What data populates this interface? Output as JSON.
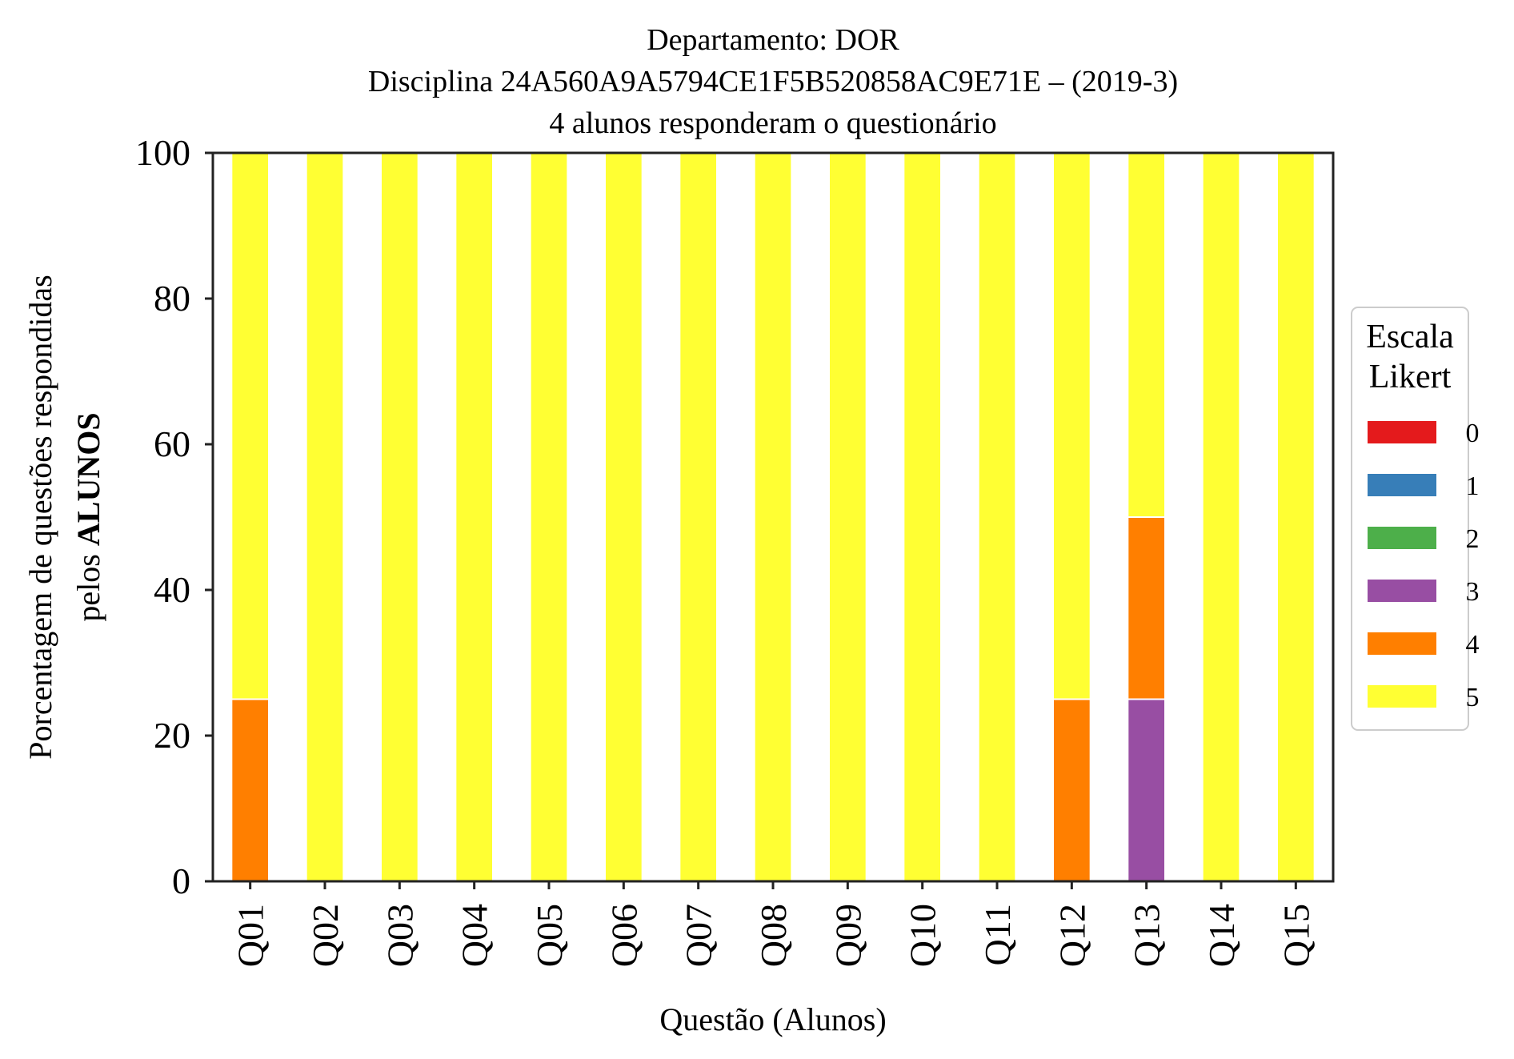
{
  "chart_data": {
    "type": "bar",
    "stacked": true,
    "title_lines": [
      "Departamento: DOR",
      "Disciplina 24A560A9A5794CE1F5B520858AC9E71E – (2019-3)",
      "4 alunos responderam o questionário"
    ],
    "xlabel": "Questão (Alunos)",
    "ylabel_line1": "Porcentagem de questões respondidas",
    "ylabel_line2_prefix": "pelos ",
    "ylabel_line2_bold": "ALUNOS",
    "ylim": [
      0,
      100
    ],
    "yticks": [
      0,
      20,
      40,
      60,
      80,
      100
    ],
    "grid": false,
    "categories": [
      "Q01",
      "Q02",
      "Q03",
      "Q04",
      "Q05",
      "Q06",
      "Q07",
      "Q08",
      "Q09",
      "Q10",
      "Q11",
      "Q12",
      "Q13",
      "Q14",
      "Q15"
    ],
    "legend": {
      "title_line1": "Escala",
      "title_line2": "Likert",
      "placement": "right"
    },
    "series": [
      {
        "name": "0",
        "color": "#e41a1c",
        "values": [
          0,
          0,
          0,
          0,
          0,
          0,
          0,
          0,
          0,
          0,
          0,
          0,
          0,
          0,
          0
        ]
      },
      {
        "name": "1",
        "color": "#377eb8",
        "values": [
          0,
          0,
          0,
          0,
          0,
          0,
          0,
          0,
          0,
          0,
          0,
          0,
          0,
          0,
          0
        ]
      },
      {
        "name": "2",
        "color": "#4daf4a",
        "values": [
          0,
          0,
          0,
          0,
          0,
          0,
          0,
          0,
          0,
          0,
          0,
          0,
          0,
          0,
          0
        ]
      },
      {
        "name": "3",
        "color": "#984ea3",
        "values": [
          0,
          0,
          0,
          0,
          0,
          0,
          0,
          0,
          0,
          0,
          0,
          0,
          25,
          0,
          0
        ]
      },
      {
        "name": "4",
        "color": "#ff7f00",
        "values": [
          25,
          0,
          0,
          0,
          0,
          0,
          0,
          0,
          0,
          0,
          0,
          25,
          25,
          0,
          0
        ]
      },
      {
        "name": "5",
        "color": "#ffff33",
        "values": [
          75,
          100,
          100,
          100,
          100,
          100,
          100,
          100,
          100,
          100,
          100,
          75,
          50,
          100,
          100
        ]
      }
    ]
  }
}
